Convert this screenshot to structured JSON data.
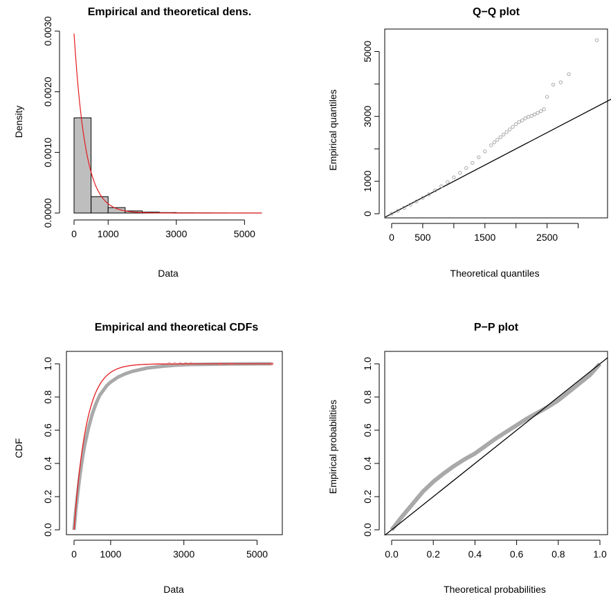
{
  "chart_data": [
    {
      "type": "bar",
      "panel": "density",
      "title": "Empirical and theoretical dens.",
      "xlabel": "Data",
      "ylabel": "Density",
      "xlim": [
        0,
        5500
      ],
      "ylim": [
        0,
        0.003
      ],
      "xticks": [
        0,
        1000,
        3000,
        5000
      ],
      "xtick_labels": [
        "0",
        "1000",
        "3000",
        "5000"
      ],
      "yticks": [
        0,
        0.001,
        0.002,
        0.003
      ],
      "ytick_labels": [
        "0.0000",
        "0.0010",
        "0.0020",
        "0.0030"
      ],
      "histogram": {
        "bin_edges": [
          0,
          500,
          1000,
          1500,
          2000,
          2500,
          3000,
          3500,
          4000,
          4500,
          5000,
          5500
        ],
        "densities": [
          0.00157,
          0.00027,
          9e-05,
          3.5e-05,
          1.5e-05,
          8e-06,
          4e-06,
          3e-06,
          2e-06,
          1e-06,
          1e-06
        ],
        "fill": "#bebebe"
      },
      "curve": {
        "name": "theoretical density",
        "rate": 0.00296,
        "color": "#e41a1c"
      }
    },
    {
      "type": "scatter",
      "panel": "qq",
      "title": "Q−Q plot",
      "xlabel": "Theoretical quantiles",
      "ylabel": "Empirical quantiles",
      "xlim": [
        0,
        3350
      ],
      "ylim": [
        0,
        5500
      ],
      "xticks": [
        0,
        500,
        1500,
        2500
      ],
      "xtick_labels": [
        "0",
        "500",
        "1500",
        "2500"
      ],
      "xminor": [
        1000,
        2000,
        3000
      ],
      "yticks": [
        0,
        1000,
        3000,
        5000
      ],
      "ytick_labels": [
        "0",
        "1000",
        "3000",
        "5000"
      ],
      "yminor": [
        2000,
        4000
      ],
      "points": [
        [
          0,
          0
        ],
        [
          100,
          90
        ],
        [
          200,
          185
        ],
        [
          300,
          280
        ],
        [
          400,
          380
        ],
        [
          500,
          490
        ],
        [
          600,
          600
        ],
        [
          700,
          720
        ],
        [
          800,
          850
        ],
        [
          900,
          980
        ],
        [
          1000,
          1120
        ],
        [
          1100,
          1260
        ],
        [
          1200,
          1410
        ],
        [
          1300,
          1570
        ],
        [
          1400,
          1740
        ],
        [
          1500,
          1920
        ],
        [
          1600,
          2110
        ],
        [
          1650,
          2200
        ],
        [
          1700,
          2280
        ],
        [
          1750,
          2360
        ],
        [
          1800,
          2440
        ],
        [
          1850,
          2520
        ],
        [
          1900,
          2600
        ],
        [
          1950,
          2680
        ],
        [
          2000,
          2760
        ],
        [
          2050,
          2830
        ],
        [
          2100,
          2880
        ],
        [
          2150,
          2940
        ],
        [
          2200,
          2990
        ],
        [
          2250,
          3020
        ],
        [
          2300,
          3060
        ],
        [
          2350,
          3110
        ],
        [
          2400,
          3160
        ],
        [
          2450,
          3220
        ],
        [
          2500,
          3600
        ],
        [
          2600,
          3980
        ],
        [
          2720,
          4050
        ],
        [
          2850,
          4300
        ],
        [
          3300,
          5350
        ]
      ],
      "line": {
        "slope": 1,
        "intercept": 0
      },
      "point_color": "#9e9e9e"
    },
    {
      "type": "line",
      "panel": "cdf",
      "title": "Empirical and theoretical CDFs",
      "xlabel": "Data",
      "ylabel": "CDF",
      "xlim": [
        0,
        5500
      ],
      "ylim": [
        0,
        1
      ],
      "xticks": [
        0,
        1000,
        3000,
        5000
      ],
      "xtick_labels": [
        "0",
        "1000",
        "3000",
        "5000"
      ],
      "yticks": [
        0,
        0.2,
        0.4,
        0.6,
        0.8,
        1.0
      ],
      "ytick_labels": [
        "0.0",
        "0.2",
        "0.4",
        "0.6",
        "0.8",
        "1.0"
      ],
      "empirical": [
        [
          0,
          0
        ],
        [
          25,
          0.06
        ],
        [
          50,
          0.12
        ],
        [
          100,
          0.22
        ],
        [
          150,
          0.31
        ],
        [
          200,
          0.39
        ],
        [
          250,
          0.46
        ],
        [
          300,
          0.52
        ],
        [
          400,
          0.62
        ],
        [
          500,
          0.7
        ],
        [
          600,
          0.76
        ],
        [
          700,
          0.81
        ],
        [
          800,
          0.84
        ],
        [
          900,
          0.87
        ],
        [
          1000,
          0.89
        ],
        [
          1200,
          0.92
        ],
        [
          1400,
          0.94
        ],
        [
          1600,
          0.955
        ],
        [
          1800,
          0.965
        ],
        [
          2000,
          0.975
        ],
        [
          2400,
          0.985
        ],
        [
          2800,
          0.992
        ],
        [
          3200,
          0.996
        ],
        [
          4300,
          0.999
        ],
        [
          5400,
          1.0
        ]
      ],
      "empirical_tail_points": [
        2600,
        2750,
        2900,
        3050,
        3200,
        4000,
        4300,
        5400
      ],
      "empirical_color": "#a9a9a9",
      "curve": {
        "name": "theoretical CDF",
        "rate": 0.00296,
        "color": "#e41a1c"
      }
    },
    {
      "type": "scatter",
      "panel": "pp",
      "title": "P−P plot",
      "xlabel": "Theoretical probabilities",
      "ylabel": "Empirical probabilities",
      "xlim": [
        0,
        1
      ],
      "ylim": [
        0,
        1
      ],
      "xticks": [
        0,
        0.2,
        0.4,
        0.6,
        0.8,
        1.0
      ],
      "xtick_labels": [
        "0.0",
        "0.2",
        "0.4",
        "0.6",
        "0.8",
        "1.0"
      ],
      "yticks": [
        0,
        0.2,
        0.4,
        0.6,
        0.8,
        1.0
      ],
      "ytick_labels": [
        "0.0",
        "0.2",
        "0.4",
        "0.6",
        "0.8",
        "1.0"
      ],
      "points": [
        [
          0,
          0
        ],
        [
          0.05,
          0.08
        ],
        [
          0.1,
          0.155
        ],
        [
          0.15,
          0.23
        ],
        [
          0.2,
          0.29
        ],
        [
          0.25,
          0.34
        ],
        [
          0.3,
          0.385
        ],
        [
          0.35,
          0.425
        ],
        [
          0.4,
          0.46
        ],
        [
          0.45,
          0.505
        ],
        [
          0.5,
          0.55
        ],
        [
          0.55,
          0.59
        ],
        [
          0.6,
          0.63
        ],
        [
          0.65,
          0.67
        ],
        [
          0.7,
          0.705
        ],
        [
          0.75,
          0.74
        ],
        [
          0.8,
          0.78
        ],
        [
          0.85,
          0.83
        ],
        [
          0.9,
          0.88
        ],
        [
          0.95,
          0.93
        ],
        [
          1.0,
          1.0
        ]
      ],
      "line": {
        "slope": 1,
        "intercept": 0
      },
      "point_color": "#a9a9a9"
    }
  ]
}
